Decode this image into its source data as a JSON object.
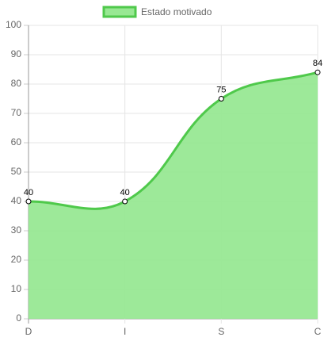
{
  "chart_data": {
    "type": "line",
    "legend": "top",
    "categories": [
      "D",
      "I",
      "S",
      "C"
    ],
    "series": [
      {
        "name": "Estado motivado",
        "color": "#4fc94b",
        "fill": "#98e893",
        "values": [
          40,
          40,
          75,
          84
        ]
      }
    ],
    "ylim": [
      0,
      100
    ],
    "yticks": [
      0,
      10,
      20,
      30,
      40,
      50,
      60,
      70,
      80,
      90,
      100
    ],
    "grid": true
  }
}
